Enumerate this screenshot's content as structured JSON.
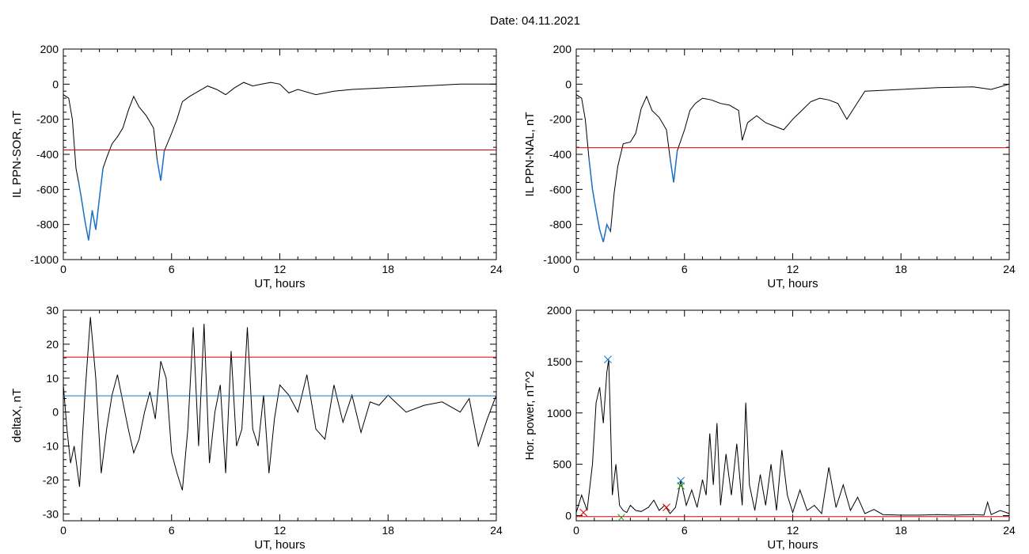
{
  "page": {
    "title": "Date:  04.11.2021"
  },
  "colors": {
    "trace": "#000000",
    "threshold": "#dd0000",
    "secondary": "#1a73c9",
    "marker_green": "#1aa31a"
  },
  "chart_data": [
    {
      "id": "sor",
      "type": "line",
      "ylabel": "IL PPN-SOR, nT",
      "xlabel": "UT, hours",
      "xlim": [
        0,
        24
      ],
      "ylim": [
        -1000,
        200
      ],
      "xticks": [
        0,
        6,
        12,
        18,
        24
      ],
      "yticks": [
        -1000,
        -800,
        -600,
        -400,
        -200,
        0,
        200
      ],
      "x": [
        0.0,
        0.3,
        0.5,
        0.7,
        0.85,
        1.0,
        1.2,
        1.4,
        1.6,
        1.8,
        2.0,
        2.2,
        2.4,
        2.7,
        3.0,
        3.3,
        3.6,
        3.9,
        4.2,
        4.6,
        5.0,
        5.2,
        5.4,
        5.6,
        6.0,
        6.3,
        6.6,
        7.0,
        7.5,
        8.0,
        8.5,
        9.0,
        9.5,
        10.0,
        10.5,
        11.0,
        11.5,
        12.0,
        12.5,
        13.0,
        14.0,
        15.0,
        16.0,
        18.0,
        20.0,
        22.0,
        24.0
      ],
      "y": [
        -60,
        -80,
        -200,
        -480,
        -560,
        -650,
        -780,
        -890,
        -720,
        -830,
        -650,
        -480,
        -420,
        -340,
        -300,
        -250,
        -150,
        -70,
        -130,
        -180,
        -250,
        -430,
        -550,
        -380,
        -280,
        -200,
        -100,
        -70,
        -40,
        -10,
        -30,
        -60,
        -20,
        10,
        -10,
        0,
        10,
        0,
        -50,
        -30,
        -60,
        -40,
        -30,
        -20,
        -10,
        0,
        0
      ],
      "threshold": -375,
      "highlight_ranges": [
        [
          0.8,
          2.3
        ],
        [
          5.2,
          5.6
        ]
      ],
      "legend": "none"
    },
    {
      "id": "nal",
      "type": "line",
      "ylabel": "IL PPN-NAL, nT",
      "xlabel": "UT, hours",
      "xlim": [
        0,
        24
      ],
      "ylim": [
        -1000,
        200
      ],
      "xticks": [
        0,
        6,
        12,
        18,
        24
      ],
      "yticks": [
        -1000,
        -800,
        -600,
        -400,
        -200,
        0,
        200
      ],
      "x": [
        0.0,
        0.3,
        0.5,
        0.7,
        0.9,
        1.1,
        1.3,
        1.5,
        1.7,
        1.9,
        2.1,
        2.3,
        2.6,
        3.0,
        3.3,
        3.6,
        3.9,
        4.2,
        4.6,
        5.0,
        5.2,
        5.4,
        5.6,
        6.0,
        6.3,
        6.6,
        7.0,
        7.5,
        8.0,
        8.5,
        9.0,
        9.2,
        9.5,
        10.0,
        10.5,
        11.0,
        11.5,
        12.0,
        12.5,
        13.0,
        13.5,
        14.0,
        14.5,
        15.0,
        15.5,
        16.0,
        18.0,
        20.0,
        22.0,
        23.0,
        24.0
      ],
      "y": [
        -60,
        -80,
        -200,
        -420,
        -600,
        -720,
        -830,
        -900,
        -800,
        -840,
        -620,
        -470,
        -340,
        -330,
        -280,
        -140,
        -70,
        -150,
        -190,
        -260,
        -420,
        -560,
        -380,
        -260,
        -150,
        -110,
        -80,
        -90,
        -110,
        -120,
        -150,
        -320,
        -220,
        -180,
        -220,
        -240,
        -260,
        -200,
        -150,
        -100,
        -80,
        -90,
        -110,
        -200,
        -120,
        -40,
        -30,
        -20,
        -15,
        -30,
        0
      ],
      "threshold": -362,
      "highlight_ranges": [
        [
          0.7,
          2.0
        ],
        [
          5.2,
          5.6
        ]
      ],
      "legend": "none"
    },
    {
      "id": "deltax",
      "type": "line",
      "ylabel": "deltaX, nT",
      "xlabel": "UT, hours",
      "xlim": [
        0,
        24
      ],
      "ylim": [
        -32,
        30
      ],
      "xticks": [
        0,
        6,
        12,
        18,
        24
      ],
      "yticks": [
        -30,
        -20,
        -10,
        0,
        10,
        20,
        30
      ],
      "x": [
        0.0,
        0.2,
        0.4,
        0.6,
        0.9,
        1.2,
        1.5,
        1.8,
        2.1,
        2.4,
        2.7,
        3.0,
        3.3,
        3.6,
        3.9,
        4.2,
        4.5,
        4.8,
        5.1,
        5.4,
        5.7,
        6.0,
        6.3,
        6.6,
        6.9,
        7.2,
        7.5,
        7.8,
        8.1,
        8.4,
        8.7,
        9.0,
        9.3,
        9.6,
        9.9,
        10.2,
        10.5,
        10.8,
        11.1,
        11.4,
        11.7,
        12.0,
        12.5,
        13.0,
        13.5,
        14.0,
        14.5,
        15.0,
        15.5,
        16.0,
        16.5,
        17.0,
        17.5,
        18.0,
        19.0,
        20.0,
        21.0,
        22.0,
        22.5,
        23.0,
        23.5,
        24.0
      ],
      "y": [
        8,
        -5,
        -15,
        -10,
        -22,
        5,
        28,
        10,
        -18,
        -5,
        5,
        11,
        3,
        -5,
        -12,
        -8,
        0,
        6,
        -2,
        15,
        10,
        -12,
        -18,
        -23,
        -5,
        25,
        -10,
        26,
        -15,
        0,
        8,
        -18,
        18,
        -10,
        -5,
        25,
        -5,
        -10,
        5,
        -18,
        -2,
        8,
        5,
        0,
        11,
        -5,
        -8,
        8,
        -3,
        5,
        -6,
        3,
        2,
        5,
        0,
        2,
        3,
        0,
        4,
        -10,
        -2,
        5
      ],
      "thresholds": [
        16.2,
        4.8
      ],
      "legend": "none"
    },
    {
      "id": "power",
      "type": "line",
      "ylabel": "Hor. power, nT^2",
      "xlabel": "UT, hours",
      "xlim": [
        0,
        24
      ],
      "ylim": [
        -50,
        2000
      ],
      "xticks": [
        0,
        6,
        12,
        18,
        24
      ],
      "yticks": [
        0,
        500,
        1000,
        1500,
        2000
      ],
      "ytick_labels": [
        "0",
        "500",
        "1000",
        "1500",
        "2000"
      ],
      "x": [
        0.0,
        0.3,
        0.6,
        0.9,
        1.1,
        1.3,
        1.5,
        1.7,
        1.8,
        1.9,
        2.0,
        2.2,
        2.4,
        2.6,
        2.8,
        3.0,
        3.3,
        3.6,
        4.0,
        4.3,
        4.6,
        4.9,
        5.2,
        5.5,
        5.8,
        6.1,
        6.4,
        6.7,
        7.0,
        7.2,
        7.4,
        7.6,
        7.8,
        8.0,
        8.3,
        8.6,
        8.9,
        9.2,
        9.4,
        9.6,
        9.9,
        10.2,
        10.5,
        10.8,
        11.1,
        11.4,
        11.7,
        12.0,
        12.4,
        12.8,
        13.2,
        13.6,
        14.0,
        14.4,
        14.8,
        15.2,
        15.6,
        16.0,
        16.5,
        17.0,
        18.0,
        19.0,
        20.0,
        21.0,
        22.0,
        22.6,
        22.8,
        23.0,
        23.5,
        24.0
      ],
      "y": [
        30,
        200,
        50,
        500,
        1100,
        1250,
        900,
        1400,
        1520,
        900,
        200,
        500,
        100,
        50,
        30,
        100,
        50,
        40,
        80,
        150,
        50,
        100,
        20,
        80,
        340,
        100,
        250,
        80,
        350,
        200,
        800,
        300,
        900,
        100,
        600,
        200,
        700,
        100,
        1100,
        300,
        50,
        400,
        100,
        500,
        50,
        640,
        200,
        30,
        250,
        50,
        100,
        20,
        470,
        80,
        300,
        50,
        180,
        20,
        60,
        10,
        5,
        5,
        10,
        5,
        10,
        5,
        130,
        10,
        50,
        20
      ],
      "threshold": -10,
      "markers": [
        {
          "x": 1.75,
          "y": 1520,
          "symbol": "x",
          "color": "#1a73c9"
        },
        {
          "x": 5.8,
          "y": 340,
          "symbol": "x",
          "color": "#1a73c9"
        },
        {
          "x": 5.8,
          "y": 290,
          "symbol": "x",
          "color": "#1aa31a"
        },
        {
          "x": 0.4,
          "y": 30,
          "symbol": "x",
          "color": "#dd0000"
        },
        {
          "x": 5.0,
          "y": 80,
          "symbol": "x",
          "color": "#dd0000"
        },
        {
          "x": 2.5,
          "y": -20,
          "symbol": "x",
          "color": "#1aa31a"
        }
      ],
      "legend": "none"
    }
  ]
}
